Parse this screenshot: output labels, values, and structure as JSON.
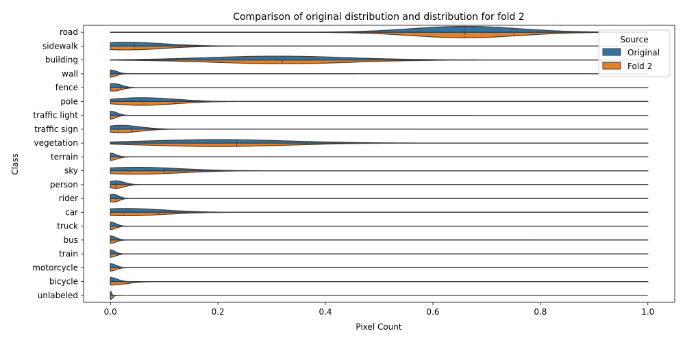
{
  "chart_data": {
    "type": "violin",
    "title": "Comparison of original distribution and distribution for fold 2",
    "xlabel": "Pixel Count",
    "ylabel": "Class",
    "xlim": [
      -0.05,
      1.05
    ],
    "x_ticks": [
      "0.0",
      "0.2",
      "0.4",
      "0.6",
      "0.8",
      "1.0"
    ],
    "x_tick_values": [
      0.0,
      0.2,
      0.4,
      0.6,
      0.8,
      1.0
    ],
    "legend": {
      "title": "Source",
      "placement": "top-right",
      "entries": [
        "Original",
        "Fold 2"
      ]
    },
    "colors": {
      "Original": "#3274a1",
      "Fold 2": "#e1812c",
      "outline": "#3d3d3d"
    },
    "categories": [
      "road",
      "sidewalk",
      "building",
      "wall",
      "fence",
      "pole",
      "traffic light",
      "traffic sign",
      "vegetation",
      "terrain",
      "sky",
      "person",
      "rider",
      "car",
      "truck",
      "bus",
      "train",
      "motorcycle",
      "bicycle",
      "unlabeled"
    ],
    "series": [
      {
        "name": "Original",
        "distributions": [
          {
            "min": 0.0,
            "max": 1.0,
            "q1": 0.575,
            "median": 0.66,
            "q3": 0.745,
            "peak": 0.66,
            "spread": 0.1,
            "width": 0.85
          },
          {
            "min": 0.0,
            "max": 1.0,
            "q1": 0.045,
            "median": 0.135,
            "q3": 0.27,
            "peak": 0.03,
            "spread": 0.07,
            "width": 0.55
          },
          {
            "min": 0.0,
            "max": 1.0,
            "q1": 0.17,
            "median": 0.31,
            "q3": 0.445,
            "peak": 0.31,
            "spread": 0.13,
            "width": 0.55
          },
          {
            "min": 0.0,
            "max": 0.46,
            "q1": 0.0,
            "median": 0.0,
            "q3": 0.01,
            "peak": 0.0,
            "spread": 0.012,
            "width": 0.55
          },
          {
            "min": 0.0,
            "max": 1.0,
            "q1": 0.0,
            "median": 0.0,
            "q3": 0.02,
            "peak": 0.005,
            "spread": 0.015,
            "width": 0.6
          },
          {
            "min": 0.0,
            "max": 1.0,
            "q1": 0.055,
            "median": 0.115,
            "q3": 0.21,
            "peak": 0.06,
            "spread": 0.06,
            "width": 0.55
          },
          {
            "min": 0.0,
            "max": 0.67,
            "q1": 0.0,
            "median": 0.0,
            "q3": 0.0,
            "peak": 0.0,
            "spread": 0.012,
            "width": 0.6
          },
          {
            "min": 0.0,
            "max": 0.56,
            "q1": 0.015,
            "median": 0.04,
            "q3": 0.09,
            "peak": 0.02,
            "spread": 0.035,
            "width": 0.55
          },
          {
            "min": 0.0,
            "max": 1.0,
            "q1": 0.1,
            "median": 0.235,
            "q3": 0.38,
            "peak": 0.2,
            "spread": 0.13,
            "width": 0.5
          },
          {
            "min": 0.0,
            "max": 1.0,
            "q1": 0.0,
            "median": 0.0,
            "q3": 0.0,
            "peak": 0.0,
            "spread": 0.01,
            "width": 0.55
          },
          {
            "min": 0.0,
            "max": 1.0,
            "q1": 0.03,
            "median": 0.1,
            "q3": 0.2,
            "peak": 0.05,
            "spread": 0.08,
            "width": 0.5
          },
          {
            "min": 0.0,
            "max": 1.0,
            "q1": 0.0,
            "median": 0.01,
            "q3": 0.035,
            "peak": 0.01,
            "spread": 0.015,
            "width": 0.55
          },
          {
            "min": 0.0,
            "max": 1.0,
            "q1": 0.0,
            "median": 0.0,
            "q3": 0.01,
            "peak": 0.005,
            "spread": 0.01,
            "width": 0.6
          },
          {
            "min": 0.0,
            "max": 1.0,
            "q1": 0.03,
            "median": 0.1,
            "q3": 0.19,
            "peak": 0.03,
            "spread": 0.07,
            "width": 0.55
          },
          {
            "min": 0.0,
            "max": 1.0,
            "q1": 0.0,
            "median": 0.0,
            "q3": 0.0,
            "peak": 0.0,
            "spread": 0.01,
            "width": 0.6
          },
          {
            "min": 0.0,
            "max": 0.78,
            "q1": 0.0,
            "median": 0.0,
            "q3": 0.0,
            "peak": 0.0,
            "spread": 0.01,
            "width": 0.6
          },
          {
            "min": 0.0,
            "max": 1.0,
            "q1": 0.0,
            "median": 0.0,
            "q3": 0.0,
            "peak": 0.0,
            "spread": 0.008,
            "width": 0.6
          },
          {
            "min": 0.0,
            "max": 1.0,
            "q1": 0.0,
            "median": 0.0,
            "q3": 0.0,
            "peak": 0.0,
            "spread": 0.01,
            "width": 0.6
          },
          {
            "min": 0.0,
            "max": 1.0,
            "q1": 0.0,
            "median": 0.0,
            "q3": 0.005,
            "peak": 0.0,
            "spread": 0.012,
            "width": 0.6
          },
          {
            "min": 0.0,
            "max": 0.01,
            "q1": 0.0,
            "median": 0.0,
            "q3": 0.0,
            "peak": 0.0,
            "spread": 0.002,
            "width": 0.6
          }
        ]
      },
      {
        "name": "Fold 2",
        "distributions": [
          {
            "min": 0.0,
            "max": 1.0,
            "q1": 0.565,
            "median": 0.66,
            "q3": 0.75,
            "peak": 0.66,
            "spread": 0.1,
            "width": 0.8
          },
          {
            "min": 0.0,
            "max": 1.0,
            "q1": 0.045,
            "median": 0.14,
            "q3": 0.265,
            "peak": 0.03,
            "spread": 0.07,
            "width": 0.55
          },
          {
            "min": 0.0,
            "max": 1.0,
            "q1": 0.185,
            "median": 0.32,
            "q3": 0.455,
            "peak": 0.32,
            "spread": 0.13,
            "width": 0.55
          },
          {
            "min": 0.0,
            "max": 1.0,
            "q1": 0.0,
            "median": 0.0,
            "q3": 0.005,
            "peak": 0.0,
            "spread": 0.01,
            "width": 0.5
          },
          {
            "min": 0.0,
            "max": 1.0,
            "q1": 0.0,
            "median": 0.0,
            "q3": 0.02,
            "peak": 0.005,
            "spread": 0.015,
            "width": 0.5
          },
          {
            "min": 0.0,
            "max": 1.0,
            "q1": 0.06,
            "median": 0.12,
            "q3": 0.21,
            "peak": 0.06,
            "spread": 0.06,
            "width": 0.55
          },
          {
            "min": 0.0,
            "max": 1.0,
            "q1": 0.0,
            "median": 0.0,
            "q3": 0.0,
            "peak": 0.0,
            "spread": 0.01,
            "width": 0.55
          },
          {
            "min": 0.0,
            "max": 1.0,
            "q1": 0.015,
            "median": 0.04,
            "q3": 0.09,
            "peak": 0.02,
            "spread": 0.035,
            "width": 0.5
          },
          {
            "min": 0.0,
            "max": 1.0,
            "q1": 0.095,
            "median": 0.235,
            "q3": 0.365,
            "peak": 0.2,
            "spread": 0.13,
            "width": 0.5
          },
          {
            "min": 0.0,
            "max": 1.0,
            "q1": 0.0,
            "median": 0.0,
            "q3": 0.02,
            "peak": 0.0,
            "spread": 0.012,
            "width": 0.5
          },
          {
            "min": 0.0,
            "max": 1.0,
            "q1": 0.035,
            "median": 0.1,
            "q3": 0.2,
            "peak": 0.05,
            "spread": 0.08,
            "width": 0.5
          },
          {
            "min": 0.0,
            "max": 1.0,
            "q1": 0.0,
            "median": 0.01,
            "q3": 0.035,
            "peak": 0.01,
            "spread": 0.015,
            "width": 0.55
          },
          {
            "min": 0.0,
            "max": 1.0,
            "q1": 0.0,
            "median": 0.0,
            "q3": 0.01,
            "peak": 0.005,
            "spread": 0.01,
            "width": 0.55
          },
          {
            "min": 0.0,
            "max": 1.0,
            "q1": 0.025,
            "median": 0.09,
            "q3": 0.185,
            "peak": 0.03,
            "spread": 0.07,
            "width": 0.5
          },
          {
            "min": 0.0,
            "max": 1.0,
            "q1": 0.0,
            "median": 0.0,
            "q3": 0.0,
            "peak": 0.0,
            "spread": 0.01,
            "width": 0.5
          },
          {
            "min": 0.0,
            "max": 1.0,
            "q1": 0.0,
            "median": 0.0,
            "q3": 0.0,
            "peak": 0.0,
            "spread": 0.01,
            "width": 0.5
          },
          {
            "min": 0.0,
            "max": 1.0,
            "q1": 0.0,
            "median": 0.0,
            "q3": 0.0,
            "peak": 0.0,
            "spread": 0.01,
            "width": 0.5
          },
          {
            "min": 0.0,
            "max": 1.0,
            "q1": 0.0,
            "median": 0.0,
            "q3": 0.0,
            "peak": 0.0,
            "spread": 0.01,
            "width": 0.5
          },
          {
            "min": 0.0,
            "max": 1.0,
            "q1": 0.0,
            "median": 0.0,
            "q3": 0.035,
            "peak": 0.0,
            "spread": 0.03,
            "width": 0.5
          },
          {
            "min": 0.0,
            "max": 0.02,
            "q1": 0.0,
            "median": 0.0,
            "q3": 0.0,
            "peak": 0.0,
            "spread": 0.004,
            "width": 0.6
          }
        ]
      }
    ]
  }
}
